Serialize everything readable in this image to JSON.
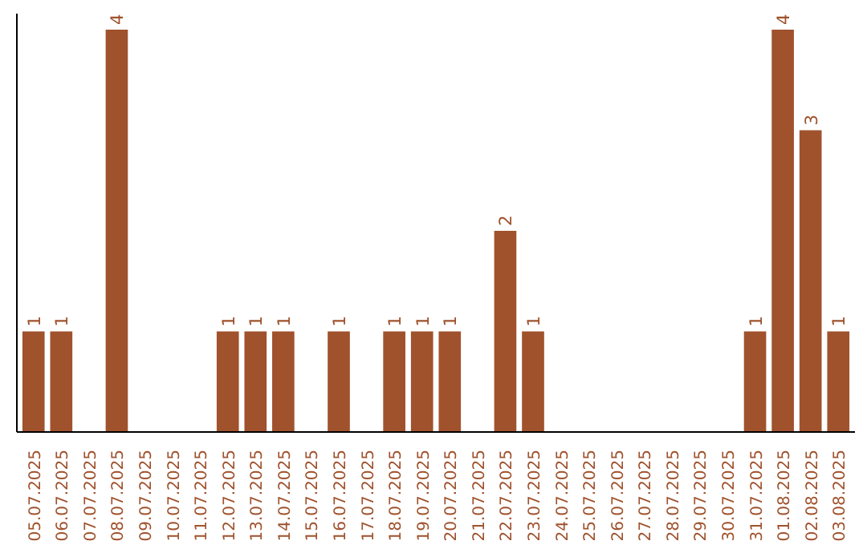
{
  "chart_data": {
    "type": "bar",
    "categories": [
      "05.07.2025",
      "06.07.2025",
      "07.07.2025",
      "08.07.2025",
      "09.07.2025",
      "10.07.2025",
      "11.07.2025",
      "12.07.2025",
      "13.07.2025",
      "14.07.2025",
      "15.07.2025",
      "16.07.2025",
      "17.07.2025",
      "18.07.2025",
      "19.07.2025",
      "20.07.2025",
      "21.07.2025",
      "22.07.2025",
      "23.07.2025",
      "24.07.2025",
      "25.07.2025",
      "26.07.2025",
      "27.07.2025",
      "28.07.2025",
      "29.07.2025",
      "30.07.2025",
      "31.07.2025",
      "01.08.2025",
      "02.08.2025",
      "03.08.2025"
    ],
    "values": [
      1,
      1,
      0,
      4,
      0,
      0,
      0,
      1,
      1,
      1,
      0,
      1,
      0,
      1,
      1,
      1,
      0,
      2,
      1,
      0,
      0,
      0,
      0,
      0,
      0,
      0,
      1,
      4,
      3,
      1
    ],
    "value_labels": [
      "1",
      "1",
      null,
      "4",
      null,
      null,
      null,
      "1",
      "1",
      "1",
      null,
      "1",
      null,
      "1",
      "1",
      "1",
      null,
      "2",
      "1",
      null,
      null,
      null,
      null,
      null,
      null,
      null,
      "1",
      "4",
      "3",
      "1"
    ],
    "color": "#a0522d",
    "grid": false,
    "tick_labels": "x"
  }
}
